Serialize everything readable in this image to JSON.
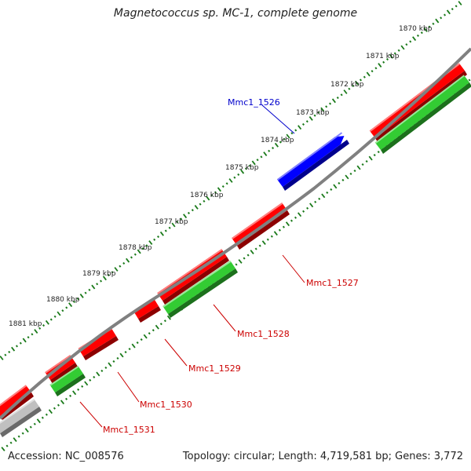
{
  "title": "Magnetococcus sp. MC-1, complete genome",
  "footer": {
    "accession": "Accession: NC_008576",
    "summary": "Topology: circular; Length: 4,719,581 bp; Genes: 3,772"
  },
  "colors": {
    "backbone": "#808080",
    "forward_cds": "#ff0000",
    "rna_gene": "#0000ff",
    "green_track": "#33cc33",
    "grey_feature": "#c0c0c0",
    "ticks": "#1a7a1a",
    "label_red": "#cc0000",
    "label_blue": "#0000cc"
  },
  "scale": {
    "unit": "kbp",
    "labels": [
      "1870 kbp",
      "1871 kbp",
      "1872 kbp",
      "1873 kbp",
      "1874 kbp",
      "1875 kbp",
      "1876 kbp",
      "1877 kbp",
      "1878 kbp",
      "1879 kbp",
      "1880 kbp",
      "1881 kbp"
    ]
  },
  "gene_labels": [
    {
      "name": "Mmc1_1526",
      "color": "blue"
    },
    {
      "name": "Mmc1_1527",
      "color": "red"
    },
    {
      "name": "Mmc1_1528",
      "color": "red"
    },
    {
      "name": "Mmc1_1529",
      "color": "red"
    },
    {
      "name": "Mmc1_1530",
      "color": "red"
    },
    {
      "name": "Mmc1_1531",
      "color": "red"
    }
  ]
}
